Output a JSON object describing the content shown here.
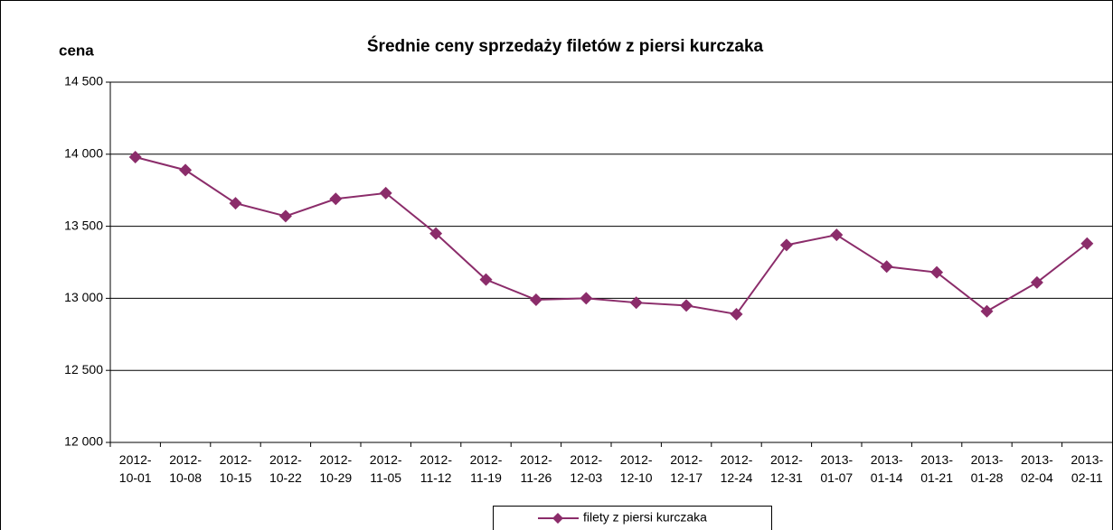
{
  "chart_data": {
    "type": "line",
    "title": "Średnie ceny sprzedaży filetów z piersi kurczaka",
    "y_label": "cena",
    "categories": [
      "2012-10-01",
      "2012-10-08",
      "2012-10-15",
      "2012-10-22",
      "2012-10-29",
      "2012-11-05",
      "2012-11-12",
      "2012-11-19",
      "2012-11-26",
      "2012-12-03",
      "2012-12-10",
      "2012-12-17",
      "2012-12-24",
      "2012-12-31",
      "2013-01-07",
      "2013-01-14",
      "2013-01-21",
      "2013-01-28",
      "2013-02-04",
      "2013-02-11"
    ],
    "series": [
      {
        "name": "filety z piersi kurczaka",
        "color": "#8b2c6a",
        "values": [
          13980,
          13890,
          13660,
          13570,
          13690,
          13730,
          13450,
          13130,
          12990,
          13000,
          12970,
          12950,
          12890,
          13370,
          13440,
          13220,
          13180,
          12910,
          13110,
          13380
        ]
      }
    ],
    "ylim": [
      12000,
      14500
    ],
    "yticks": [
      {
        "value": 12000,
        "label": "12 000"
      },
      {
        "value": 12500,
        "label": "12 500"
      },
      {
        "value": 13000,
        "label": "13 000"
      },
      {
        "value": 13500,
        "label": "13 500"
      },
      {
        "value": 14000,
        "label": "14 000"
      },
      {
        "value": 14500,
        "label": "14 500"
      }
    ],
    "grid": true
  }
}
